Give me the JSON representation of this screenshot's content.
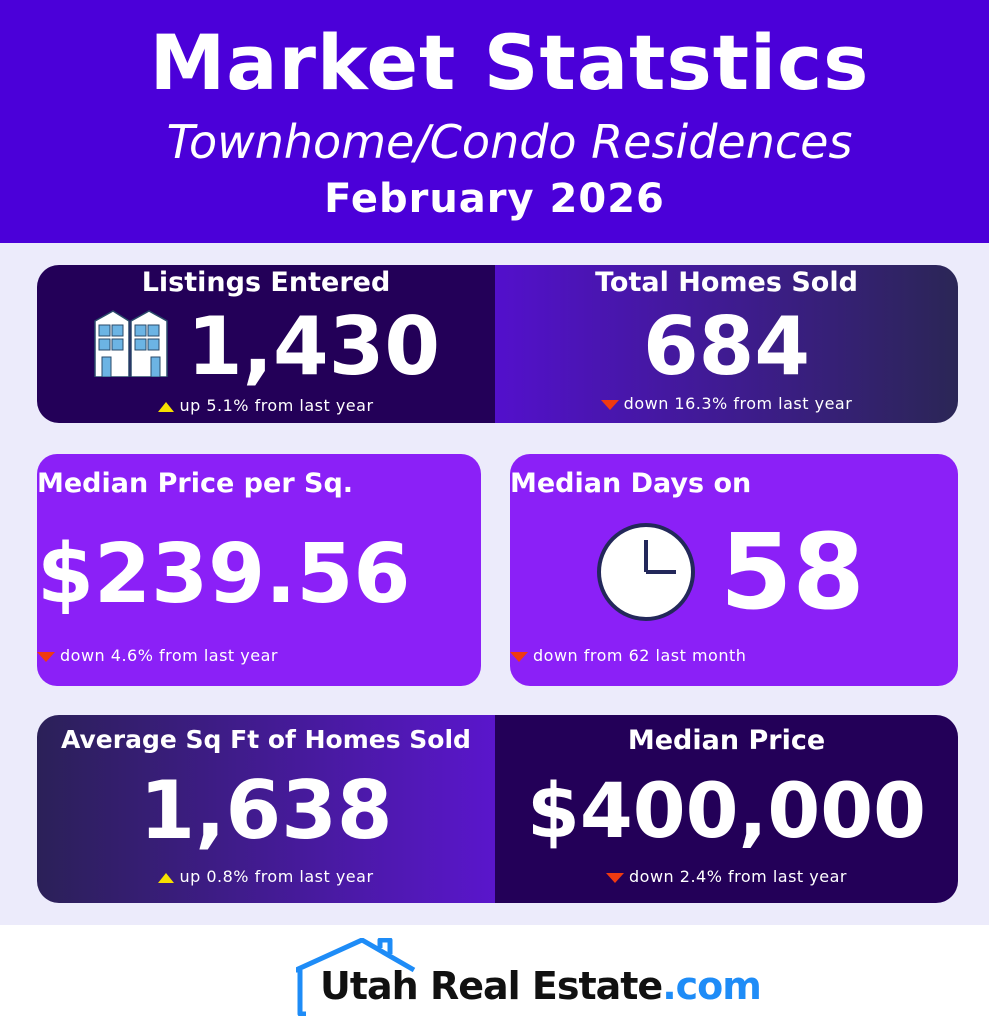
{
  "header": {
    "title": "Market Statstics",
    "subtitle": "Townhome/Condo Residences",
    "date": "February 2026"
  },
  "stats": {
    "listings": {
      "label": "Listings Entered",
      "value": "1,430",
      "change": "up 5.1% from last year",
      "direction": "up",
      "icon": "townhouse-icon"
    },
    "sold": {
      "label": "Total Homes Sold",
      "value": "684",
      "change": "down 16.3% from last year",
      "direction": "down"
    },
    "price_sqft": {
      "label": "Median Price per Sq.",
      "value": "$239.56",
      "change": "down 4.6% from last year",
      "direction": "down"
    },
    "days": {
      "label": "Median Days on",
      "value": "58",
      "change": "down from 62 last month",
      "direction": "down",
      "icon": "clock-icon"
    },
    "avg_sqft": {
      "label": "Average Sq Ft of Homes Sold",
      "value": "1,638",
      "change": "up 0.8% from last year",
      "direction": "up"
    },
    "median_price": {
      "label": "Median Price",
      "value": "$400,000",
      "change": "down 2.4% from last year",
      "direction": "down"
    }
  },
  "colors": {
    "header": "#4b00d9",
    "up": "#f6e000",
    "down": "#f03a10",
    "brand_blue": "#1e8cf7"
  },
  "footer": {
    "logo_main": "Utah Real Estate",
    "logo_suffix": ".com"
  }
}
